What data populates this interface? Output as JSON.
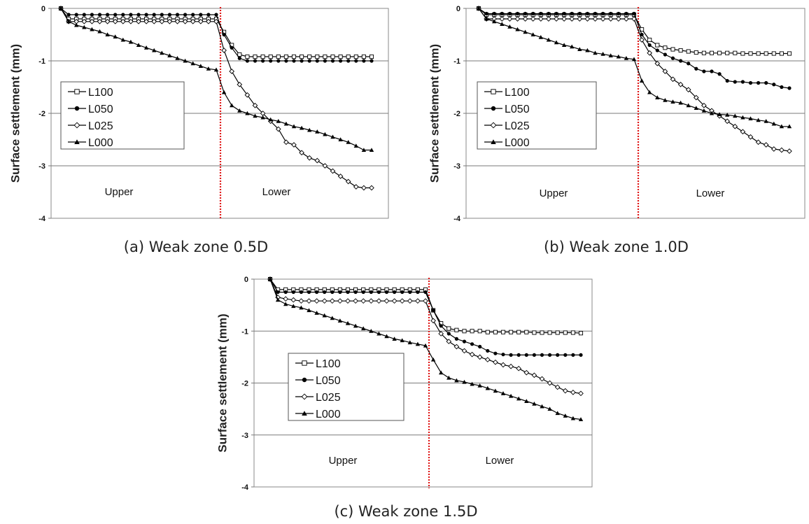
{
  "chart_data": [
    {
      "type": "line",
      "caption": "(a) Weak zone 0.5D",
      "ylabel": "Surface settlement (mm)",
      "ylim": [
        -4,
        0
      ],
      "yticks": [
        0,
        -1,
        -2,
        -3,
        -4
      ],
      "region_labels": [
        "Upper",
        "Lower"
      ],
      "grid": true,
      "legend_position": "left",
      "x": [
        1,
        2,
        3,
        4,
        5,
        6,
        7,
        8,
        9,
        10,
        11,
        12,
        13,
        14,
        15,
        16,
        17,
        18,
        19,
        20,
        21,
        22,
        23,
        24,
        25,
        26,
        27,
        28,
        29,
        30,
        31,
        32,
        33,
        34,
        35,
        36,
        37,
        38,
        39,
        40,
        41
      ],
      "series": [
        {
          "name": "L100",
          "marker": "square-open",
          "values": [
            0,
            -0.2,
            -0.2,
            -0.2,
            -0.2,
            -0.2,
            -0.2,
            -0.2,
            -0.2,
            -0.2,
            -0.2,
            -0.2,
            -0.2,
            -0.2,
            -0.2,
            -0.2,
            -0.2,
            -0.2,
            -0.2,
            -0.2,
            -0.2,
            -0.45,
            -0.7,
            -0.88,
            -0.92,
            -0.92,
            -0.92,
            -0.92,
            -0.92,
            -0.92,
            -0.92,
            -0.92,
            -0.92,
            -0.92,
            -0.92,
            -0.92,
            -0.92,
            -0.92,
            -0.92,
            -0.92,
            -0.92
          ]
        },
        {
          "name": "L050",
          "marker": "circle-filled",
          "values": [
            0,
            -0.12,
            -0.12,
            -0.12,
            -0.12,
            -0.12,
            -0.12,
            -0.12,
            -0.12,
            -0.12,
            -0.12,
            -0.12,
            -0.12,
            -0.12,
            -0.12,
            -0.12,
            -0.12,
            -0.12,
            -0.12,
            -0.12,
            -0.12,
            -0.5,
            -0.75,
            -0.95,
            -1.0,
            -1.0,
            -1.0,
            -1.0,
            -1.0,
            -1.0,
            -1.0,
            -1.0,
            -1.0,
            -1.0,
            -1.0,
            -1.0,
            -1.0,
            -1.0,
            -1.0,
            -1.0,
            -1.0
          ]
        },
        {
          "name": "L025",
          "marker": "diamond-open",
          "values": [
            0,
            -0.25,
            -0.25,
            -0.25,
            -0.25,
            -0.25,
            -0.25,
            -0.25,
            -0.25,
            -0.25,
            -0.25,
            -0.25,
            -0.25,
            -0.25,
            -0.25,
            -0.25,
            -0.25,
            -0.25,
            -0.25,
            -0.25,
            -0.25,
            -0.8,
            -1.2,
            -1.45,
            -1.65,
            -1.85,
            -2.0,
            -2.15,
            -2.3,
            -2.55,
            -2.6,
            -2.75,
            -2.85,
            -2.9,
            -3.0,
            -3.1,
            -3.2,
            -3.3,
            -3.4,
            -3.42,
            -3.42
          ]
        },
        {
          "name": "L000",
          "marker": "triangle-filled",
          "values": [
            0,
            -0.25,
            -0.32,
            -0.36,
            -0.4,
            -0.44,
            -0.5,
            -0.54,
            -0.6,
            -0.64,
            -0.7,
            -0.75,
            -0.8,
            -0.85,
            -0.9,
            -0.95,
            -1.0,
            -1.05,
            -1.1,
            -1.15,
            -1.17,
            -1.6,
            -1.85,
            -1.95,
            -2.0,
            -2.05,
            -2.08,
            -2.12,
            -2.15,
            -2.2,
            -2.25,
            -2.28,
            -2.32,
            -2.35,
            -2.4,
            -2.45,
            -2.5,
            -2.55,
            -2.62,
            -2.7,
            -2.7
          ]
        }
      ]
    },
    {
      "type": "line",
      "caption": "(b) Weak zone 1.0D",
      "ylabel": "Surface settlement (mm)",
      "ylim": [
        -4,
        0
      ],
      "yticks": [
        0,
        -1,
        -2,
        -3,
        -4
      ],
      "region_labels": [
        "Upper",
        "Lower"
      ],
      "grid": true,
      "legend_position": "left",
      "x": [
        1,
        2,
        3,
        4,
        5,
        6,
        7,
        8,
        9,
        10,
        11,
        12,
        13,
        14,
        15,
        16,
        17,
        18,
        19,
        20,
        21,
        22,
        23,
        24,
        25,
        26,
        27,
        28,
        29,
        30,
        31,
        32,
        33,
        34,
        35,
        36,
        37,
        38,
        39,
        40,
        41
      ],
      "series": [
        {
          "name": "L100",
          "marker": "square-open",
          "values": [
            0,
            -0.12,
            -0.12,
            -0.12,
            -0.12,
            -0.12,
            -0.12,
            -0.12,
            -0.12,
            -0.12,
            -0.12,
            -0.12,
            -0.12,
            -0.12,
            -0.12,
            -0.12,
            -0.12,
            -0.12,
            -0.12,
            -0.12,
            -0.12,
            -0.4,
            -0.6,
            -0.7,
            -0.75,
            -0.78,
            -0.8,
            -0.82,
            -0.84,
            -0.85,
            -0.85,
            -0.85,
            -0.85,
            -0.85,
            -0.86,
            -0.86,
            -0.86,
            -0.86,
            -0.86,
            -0.86,
            -0.86
          ]
        },
        {
          "name": "L050",
          "marker": "circle-filled",
          "values": [
            0,
            -0.1,
            -0.1,
            -0.1,
            -0.1,
            -0.1,
            -0.1,
            -0.1,
            -0.1,
            -0.1,
            -0.1,
            -0.1,
            -0.1,
            -0.1,
            -0.1,
            -0.1,
            -0.1,
            -0.1,
            -0.1,
            -0.1,
            -0.1,
            -0.5,
            -0.7,
            -0.8,
            -0.88,
            -0.95,
            -1.0,
            -1.05,
            -1.15,
            -1.2,
            -1.2,
            -1.25,
            -1.38,
            -1.4,
            -1.4,
            -1.42,
            -1.42,
            -1.42,
            -1.45,
            -1.5,
            -1.52
          ]
        },
        {
          "name": "L025",
          "marker": "diamond-open",
          "values": [
            0,
            -0.2,
            -0.2,
            -0.2,
            -0.2,
            -0.2,
            -0.2,
            -0.2,
            -0.2,
            -0.2,
            -0.2,
            -0.2,
            -0.2,
            -0.2,
            -0.2,
            -0.2,
            -0.2,
            -0.2,
            -0.2,
            -0.2,
            -0.2,
            -0.6,
            -0.85,
            -1.05,
            -1.2,
            -1.35,
            -1.45,
            -1.55,
            -1.7,
            -1.85,
            -1.95,
            -2.05,
            -2.15,
            -2.25,
            -2.35,
            -2.45,
            -2.55,
            -2.6,
            -2.68,
            -2.7,
            -2.72
          ]
        },
        {
          "name": "L000",
          "marker": "triangle-filled",
          "values": [
            0,
            -0.2,
            -0.25,
            -0.3,
            -0.35,
            -0.4,
            -0.45,
            -0.5,
            -0.55,
            -0.6,
            -0.65,
            -0.7,
            -0.73,
            -0.78,
            -0.8,
            -0.85,
            -0.87,
            -0.9,
            -0.92,
            -0.95,
            -0.97,
            -1.38,
            -1.6,
            -1.7,
            -1.75,
            -1.78,
            -1.8,
            -1.85,
            -1.9,
            -1.95,
            -2.0,
            -2.02,
            -2.03,
            -2.05,
            -2.08,
            -2.1,
            -2.13,
            -2.15,
            -2.2,
            -2.25,
            -2.25
          ]
        }
      ]
    },
    {
      "type": "line",
      "caption": "(c) Weak zone 1.5D",
      "ylabel": "Surface settlement (mm)",
      "ylim": [
        -4,
        0
      ],
      "yticks": [
        0,
        -1,
        -2,
        -3,
        -4
      ],
      "region_labels": [
        "Upper",
        "Lower"
      ],
      "grid": true,
      "legend_position": "left",
      "x": [
        1,
        2,
        3,
        4,
        5,
        6,
        7,
        8,
        9,
        10,
        11,
        12,
        13,
        14,
        15,
        16,
        17,
        18,
        19,
        20,
        21,
        22,
        23,
        24,
        25,
        26,
        27,
        28,
        29,
        30,
        31,
        32,
        33,
        34,
        35,
        36,
        37,
        38,
        39,
        40,
        41
      ],
      "series": [
        {
          "name": "L100",
          "marker": "square-open",
          "values": [
            0,
            -0.2,
            -0.2,
            -0.2,
            -0.2,
            -0.2,
            -0.2,
            -0.2,
            -0.2,
            -0.2,
            -0.2,
            -0.2,
            -0.2,
            -0.2,
            -0.2,
            -0.2,
            -0.2,
            -0.2,
            -0.2,
            -0.2,
            -0.2,
            -0.6,
            -0.85,
            -0.95,
            -0.98,
            -1.0,
            -1.0,
            -1.0,
            -1.02,
            -1.02,
            -1.02,
            -1.02,
            -1.02,
            -1.02,
            -1.03,
            -1.03,
            -1.03,
            -1.03,
            -1.03,
            -1.03,
            -1.04
          ]
        },
        {
          "name": "L050",
          "marker": "circle-filled",
          "values": [
            0,
            -0.25,
            -0.25,
            -0.25,
            -0.25,
            -0.25,
            -0.25,
            -0.25,
            -0.25,
            -0.25,
            -0.25,
            -0.25,
            -0.25,
            -0.25,
            -0.25,
            -0.25,
            -0.25,
            -0.25,
            -0.25,
            -0.25,
            -0.25,
            -0.6,
            -0.9,
            -1.05,
            -1.15,
            -1.2,
            -1.25,
            -1.3,
            -1.38,
            -1.43,
            -1.45,
            -1.46,
            -1.46,
            -1.46,
            -1.46,
            -1.46,
            -1.46,
            -1.46,
            -1.46,
            -1.46,
            -1.46
          ]
        },
        {
          "name": "L025",
          "marker": "diamond-open",
          "values": [
            0,
            -0.35,
            -0.38,
            -0.4,
            -0.42,
            -0.42,
            -0.42,
            -0.42,
            -0.42,
            -0.42,
            -0.42,
            -0.42,
            -0.42,
            -0.42,
            -0.42,
            -0.42,
            -0.42,
            -0.42,
            -0.42,
            -0.42,
            -0.42,
            -0.8,
            -1.05,
            -1.2,
            -1.3,
            -1.38,
            -1.45,
            -1.5,
            -1.55,
            -1.6,
            -1.65,
            -1.68,
            -1.72,
            -1.8,
            -1.85,
            -1.92,
            -2.0,
            -2.08,
            -2.15,
            -2.18,
            -2.2
          ]
        },
        {
          "name": "L000",
          "marker": "triangle-filled",
          "values": [
            0,
            -0.4,
            -0.48,
            -0.52,
            -0.55,
            -0.6,
            -0.65,
            -0.7,
            -0.75,
            -0.8,
            -0.85,
            -0.9,
            -0.95,
            -1.0,
            -1.05,
            -1.1,
            -1.15,
            -1.18,
            -1.22,
            -1.25,
            -1.28,
            -1.55,
            -1.8,
            -1.9,
            -1.95,
            -1.98,
            -2.02,
            -2.05,
            -2.1,
            -2.15,
            -2.2,
            -2.25,
            -2.3,
            -2.35,
            -2.4,
            -2.45,
            -2.5,
            -2.58,
            -2.63,
            -2.68,
            -2.7
          ]
        }
      ]
    }
  ]
}
